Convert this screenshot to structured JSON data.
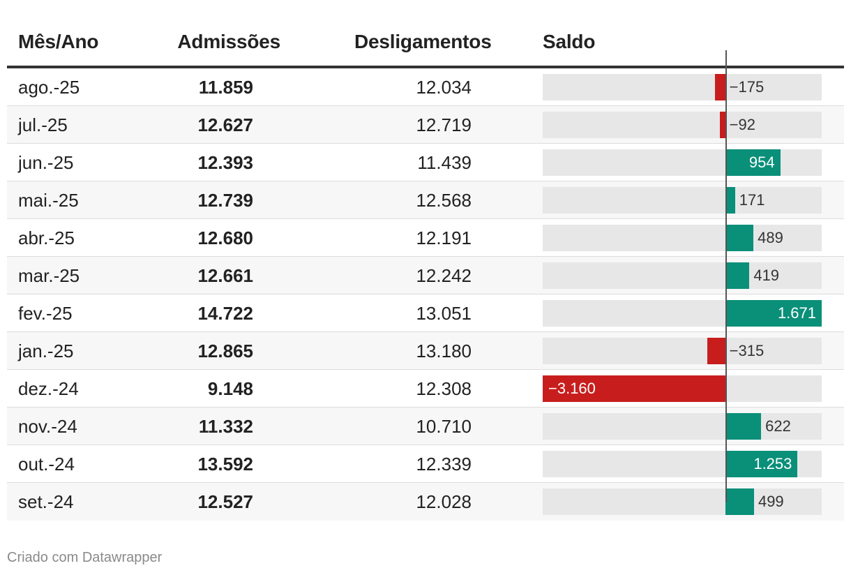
{
  "chart_data": {
    "type": "table",
    "columns": [
      "Mês/Ano",
      "Admissões",
      "Desligamentos",
      "Saldo"
    ],
    "saldo_range": [
      -3160,
      1671
    ],
    "colors": {
      "negative": "#c71e1d",
      "positive": "#0a8f79",
      "bar_background": "#e7e7e7"
    },
    "rows": [
      {
        "month": "ago.-25",
        "admissoes": "11.859",
        "desligamentos": "12.034",
        "saldo": -175,
        "saldo_label": "−175"
      },
      {
        "month": "jul.-25",
        "admissoes": "12.627",
        "desligamentos": "12.719",
        "saldo": -92,
        "saldo_label": "−92"
      },
      {
        "month": "jun.-25",
        "admissoes": "12.393",
        "desligamentos": "11.439",
        "saldo": 954,
        "saldo_label": "954"
      },
      {
        "month": "mai.-25",
        "admissoes": "12.739",
        "desligamentos": "12.568",
        "saldo": 171,
        "saldo_label": "171"
      },
      {
        "month": "abr.-25",
        "admissoes": "12.680",
        "desligamentos": "12.191",
        "saldo": 489,
        "saldo_label": "489"
      },
      {
        "month": "mar.-25",
        "admissoes": "12.661",
        "desligamentos": "12.242",
        "saldo": 419,
        "saldo_label": "419"
      },
      {
        "month": "fev.-25",
        "admissoes": "14.722",
        "desligamentos": "13.051",
        "saldo": 1671,
        "saldo_label": "1.671"
      },
      {
        "month": "jan.-25",
        "admissoes": "12.865",
        "desligamentos": "13.180",
        "saldo": -315,
        "saldo_label": "−315"
      },
      {
        "month": "dez.-24",
        "admissoes": "9.148",
        "desligamentos": "12.308",
        "saldo": -3160,
        "saldo_label": "−3.160"
      },
      {
        "month": "nov.-24",
        "admissoes": "11.332",
        "desligamentos": "10.710",
        "saldo": 622,
        "saldo_label": "622"
      },
      {
        "month": "out.-24",
        "admissoes": "13.592",
        "desligamentos": "12.339",
        "saldo": 1253,
        "saldo_label": "1.253"
      },
      {
        "month": "set.-24",
        "admissoes": "12.527",
        "desligamentos": "12.028",
        "saldo": 499,
        "saldo_label": "499"
      }
    ]
  },
  "footer": "Criado com Datawrapper"
}
